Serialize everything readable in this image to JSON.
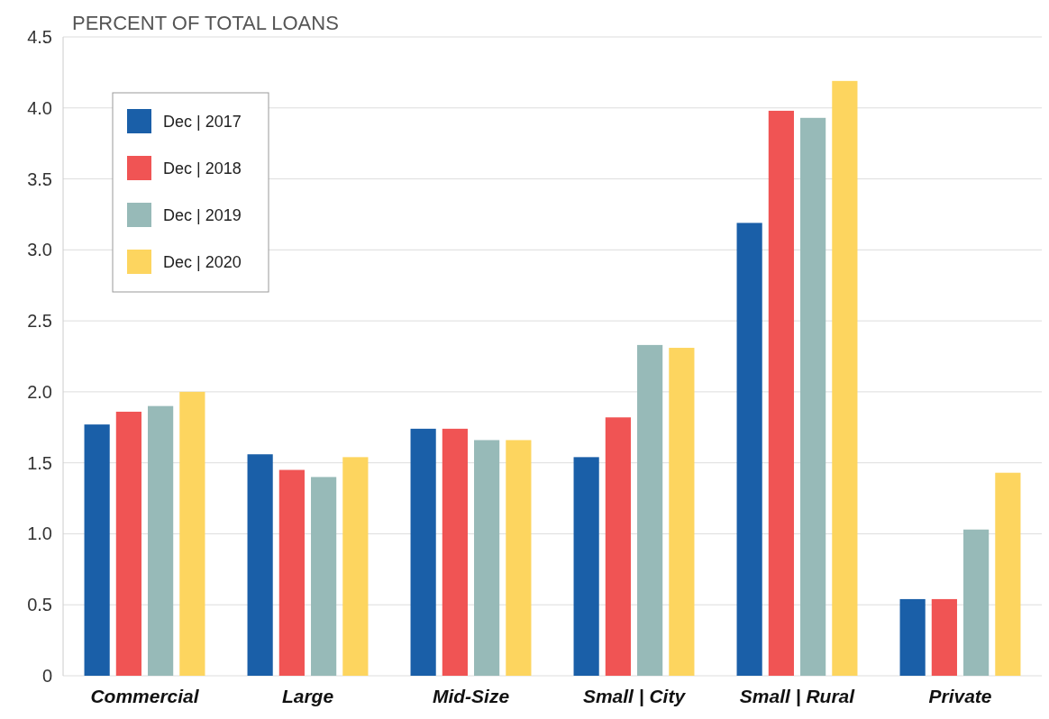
{
  "chart_data": {
    "type": "bar",
    "ylabel": "PERCENT OF TOTAL LOANS",
    "categories": [
      "Commercial",
      "Large",
      "Mid-Size",
      "Small | City",
      "Small | Rural",
      "Private"
    ],
    "series": [
      {
        "name": "Dec | 2017",
        "color": "#1a5fa8",
        "values": [
          1.77,
          1.56,
          1.74,
          1.54,
          3.19,
          0.54
        ]
      },
      {
        "name": "Dec | 2018",
        "color": "#f05454",
        "values": [
          1.86,
          1.45,
          1.74,
          1.82,
          3.98,
          0.54
        ]
      },
      {
        "name": "Dec | 2019",
        "color": "#97bab8",
        "values": [
          1.9,
          1.4,
          1.66,
          2.33,
          3.93,
          1.03
        ]
      },
      {
        "name": "Dec | 2020",
        "color": "#fdd55f",
        "values": [
          2.0,
          1.54,
          1.66,
          2.31,
          4.19,
          1.43
        ]
      }
    ],
    "ylim": [
      0,
      4.5
    ],
    "yticks": [
      0,
      {
        "value": 0.5,
        "label": "0.5"
      },
      {
        "value": 1,
        "label": "1.0"
      },
      {
        "value": 1.5,
        "label": "1.5"
      },
      {
        "value": 2,
        "label": "2.0"
      },
      {
        "value": 2.5,
        "label": "2.5"
      },
      {
        "value": 3,
        "label": "3.0"
      },
      {
        "value": 3.5,
        "label": "3.5"
      },
      {
        "value": 4,
        "label": "4.0"
      },
      {
        "value": 4.5,
        "label": "4.5"
      }
    ],
    "grid": "y",
    "legend": "top left"
  }
}
